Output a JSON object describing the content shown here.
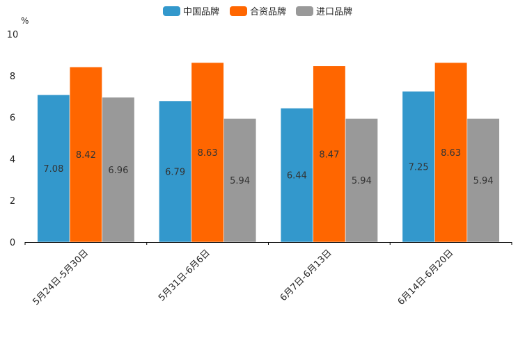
{
  "chart_data": {
    "type": "bar",
    "title": "",
    "xlabel": "",
    "ylabel": "%",
    "ylim": [
      0,
      10
    ],
    "yticks": [
      0,
      2,
      4,
      6,
      8,
      10
    ],
    "grid": false,
    "legend_position": "top-center",
    "categories": [
      "5月24日-5月30日",
      "5月31日-6月6日",
      "6月7日-6月13日",
      "6月14日-6月20日"
    ],
    "series": [
      {
        "name": "中国品牌",
        "color": "#3398cc",
        "values": [
          7.08,
          6.79,
          6.44,
          7.25
        ],
        "labels": [
          "7.08",
          "6.79",
          "6.44",
          "7.25"
        ]
      },
      {
        "name": "合资品牌",
        "color": "#ff6600",
        "values": [
          8.42,
          8.63,
          8.47,
          8.63
        ],
        "labels": [
          "8.42",
          "8.63",
          "8.47",
          "8.63"
        ]
      },
      {
        "name": "进口品牌",
        "color": "#999999",
        "values": [
          6.96,
          5.94,
          5.94,
          5.94
        ],
        "labels": [
          "6.96",
          "5.94",
          "5.94",
          "5.94"
        ]
      }
    ]
  }
}
